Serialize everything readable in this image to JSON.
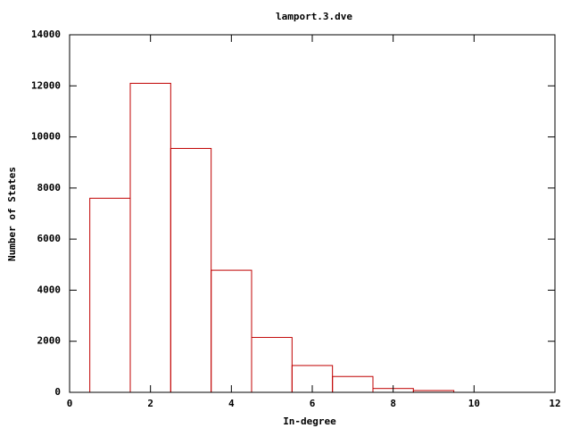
{
  "chart_data": {
    "type": "histogram",
    "title": "lamport.3.dve",
    "x_label": "In-degree",
    "y_label": "Number of States",
    "bins": [
      0.5,
      1.5,
      2.5,
      3.5,
      4.5,
      5.5,
      6.5,
      7.5,
      8.5,
      9.5
    ],
    "values": [
      7600,
      12100,
      9550,
      4780,
      2150,
      1050,
      620,
      150,
      70
    ],
    "color": "#c00000",
    "xlim": [
      0,
      12
    ],
    "xticks": [
      0,
      2,
      4,
      6,
      8,
      10,
      12
    ],
    "ylim": [
      0,
      14000
    ],
    "yticks": [
      0,
      2000,
      4000,
      6000,
      8000,
      10000,
      12000,
      14000
    ]
  }
}
